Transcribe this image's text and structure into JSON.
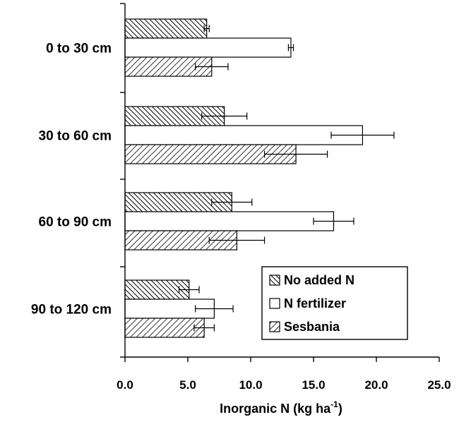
{
  "chart_data": {
    "type": "bar",
    "orientation": "horizontal",
    "categories": [
      "0 to 30 cm",
      "30 to 60 cm",
      "60 to 90 cm",
      "90 to 120 cm"
    ],
    "series": [
      {
        "name": "No added N",
        "pattern": "dense-diagonal-hatch",
        "values": [
          6.5,
          7.9,
          8.5,
          5.1
        ],
        "error": [
          0.2,
          1.8,
          1.6,
          0.8
        ]
      },
      {
        "name": "N fertilizer",
        "pattern": "solid-white",
        "values": [
          13.2,
          18.9,
          16.6,
          7.1
        ],
        "error": [
          0.2,
          2.5,
          1.6,
          1.5
        ]
      },
      {
        "name": "Sesbania",
        "pattern": "diagonal-hatch",
        "values": [
          6.9,
          13.6,
          8.9,
          6.3
        ],
        "error": [
          1.3,
          2.5,
          2.2,
          0.8
        ]
      }
    ],
    "xlabel": "Inorganic N (kg ha",
    "xlabel_sup": "-1",
    "xlabel_close": ")",
    "xlim": [
      0,
      25
    ],
    "xticks": [
      "0.0",
      "5.0",
      "10.0",
      "15.0",
      "20.0",
      "25.0"
    ],
    "xtick_values": [
      0,
      5,
      10,
      15,
      20,
      25
    ],
    "grid": false,
    "legend_position": "bottom-right",
    "colors": {
      "bar_fill": "#ffffff",
      "stroke": "#000000",
      "hatch": "#000000"
    }
  }
}
